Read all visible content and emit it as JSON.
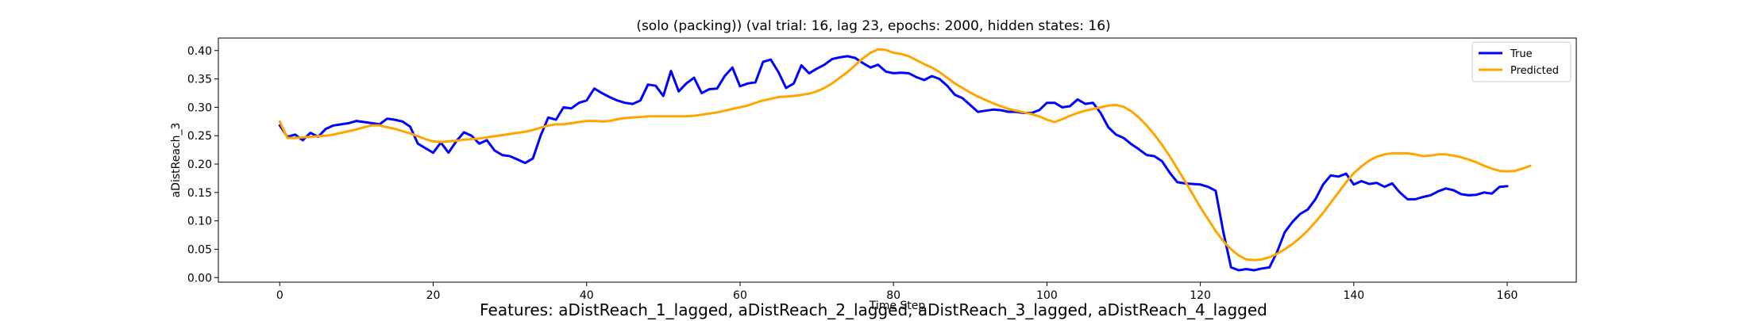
{
  "chart_data": {
    "type": "line",
    "title": "(solo (packing)) (val trial: 16, lag 23, epochs: 2000, hidden states: 16)",
    "xlabel": "Time Step",
    "ylabel": "aDistReach_3",
    "xlim": [
      -8,
      169
    ],
    "ylim": [
      -0.008,
      0.422
    ],
    "xticks": [
      0,
      20,
      40,
      60,
      80,
      100,
      120,
      140,
      160
    ],
    "yticks": [
      0.0,
      0.05,
      0.1,
      0.15,
      0.2,
      0.25,
      0.3,
      0.35,
      0.4
    ],
    "grid": false,
    "legend_position": "upper right",
    "series": [
      {
        "name": "True",
        "color": "#0000ff",
        "values": [
          0.268,
          0.248,
          0.252,
          0.242,
          0.255,
          0.248,
          0.262,
          0.268,
          0.27,
          0.272,
          0.276,
          0.274,
          0.272,
          0.27,
          0.28,
          0.278,
          0.275,
          0.266,
          0.236,
          0.228,
          0.22,
          0.238,
          0.22,
          0.24,
          0.256,
          0.25,
          0.236,
          0.242,
          0.224,
          0.216,
          0.214,
          0.208,
          0.202,
          0.21,
          0.25,
          0.282,
          0.278,
          0.3,
          0.298,
          0.308,
          0.312,
          0.333,
          0.325,
          0.318,
          0.312,
          0.308,
          0.306,
          0.312,
          0.34,
          0.338,
          0.32,
          0.364,
          0.328,
          0.342,
          0.352,
          0.325,
          0.332,
          0.333,
          0.355,
          0.37,
          0.337,
          0.342,
          0.344,
          0.38,
          0.384,
          0.362,
          0.334,
          0.342,
          0.374,
          0.36,
          0.368,
          0.375,
          0.385,
          0.388,
          0.39,
          0.387,
          0.378,
          0.37,
          0.375,
          0.363,
          0.36,
          0.361,
          0.36,
          0.353,
          0.348,
          0.355,
          0.35,
          0.338,
          0.322,
          0.316,
          0.304,
          0.292,
          0.294,
          0.296,
          0.295,
          0.292,
          0.292,
          0.29,
          0.29,
          0.295,
          0.308,
          0.308,
          0.3,
          0.302,
          0.314,
          0.306,
          0.308,
          0.29,
          0.265,
          0.252,
          0.246,
          0.235,
          0.226,
          0.216,
          0.214,
          0.205,
          0.185,
          0.168,
          0.166,
          0.165,
          0.164,
          0.16,
          0.153,
          0.08,
          0.018,
          0.013,
          0.015,
          0.013,
          0.016,
          0.018,
          0.045,
          0.08,
          0.098,
          0.112,
          0.12,
          0.138,
          0.164,
          0.18,
          0.178,
          0.183,
          0.164,
          0.17,
          0.165,
          0.167,
          0.16,
          0.166,
          0.15,
          0.138,
          0.138,
          0.142,
          0.145,
          0.152,
          0.157,
          0.154,
          0.147,
          0.145,
          0.146,
          0.15,
          0.148,
          0.16,
          0.161
        ]
      },
      {
        "name": "Predicted",
        "color": "#ffa500",
        "values": [
          0.275,
          0.246,
          0.246,
          0.247,
          0.248,
          0.249,
          0.25,
          0.252,
          0.255,
          0.258,
          0.261,
          0.265,
          0.268,
          0.268,
          0.265,
          0.262,
          0.258,
          0.254,
          0.249,
          0.244,
          0.24,
          0.239,
          0.24,
          0.241,
          0.243,
          0.244,
          0.245,
          0.247,
          0.249,
          0.251,
          0.253,
          0.255,
          0.257,
          0.26,
          0.264,
          0.268,
          0.27,
          0.27,
          0.272,
          0.274,
          0.276,
          0.276,
          0.275,
          0.276,
          0.279,
          0.281,
          0.282,
          0.283,
          0.284,
          0.284,
          0.284,
          0.284,
          0.284,
          0.284,
          0.285,
          0.287,
          0.289,
          0.291,
          0.294,
          0.297,
          0.3,
          0.303,
          0.308,
          0.312,
          0.315,
          0.318,
          0.319,
          0.32,
          0.322,
          0.324,
          0.328,
          0.334,
          0.342,
          0.352,
          0.362,
          0.374,
          0.386,
          0.396,
          0.402,
          0.401,
          0.396,
          0.394,
          0.39,
          0.383,
          0.376,
          0.37,
          0.362,
          0.352,
          0.342,
          0.334,
          0.326,
          0.319,
          0.313,
          0.307,
          0.302,
          0.297,
          0.294,
          0.291,
          0.288,
          0.284,
          0.278,
          0.274,
          0.279,
          0.285,
          0.29,
          0.294,
          0.297,
          0.3,
          0.303,
          0.304,
          0.301,
          0.293,
          0.282,
          0.268,
          0.252,
          0.234,
          0.214,
          0.192,
          0.17,
          0.147,
          0.124,
          0.103,
          0.082,
          0.064,
          0.05,
          0.039,
          0.032,
          0.031,
          0.032,
          0.036,
          0.042,
          0.05,
          0.059,
          0.07,
          0.083,
          0.098,
          0.114,
          0.132,
          0.15,
          0.168,
          0.184,
          0.196,
          0.206,
          0.213,
          0.217,
          0.219,
          0.219,
          0.219,
          0.217,
          0.214,
          0.215,
          0.217,
          0.217,
          0.215,
          0.212,
          0.208,
          0.203,
          0.197,
          0.192,
          0.188,
          0.187,
          0.188,
          0.192,
          0.197
        ]
      }
    ],
    "features_caption": "Features: aDistReach_1_lagged, aDistReach_2_lagged, aDistReach_3_lagged, aDistReach_4_lagged"
  }
}
